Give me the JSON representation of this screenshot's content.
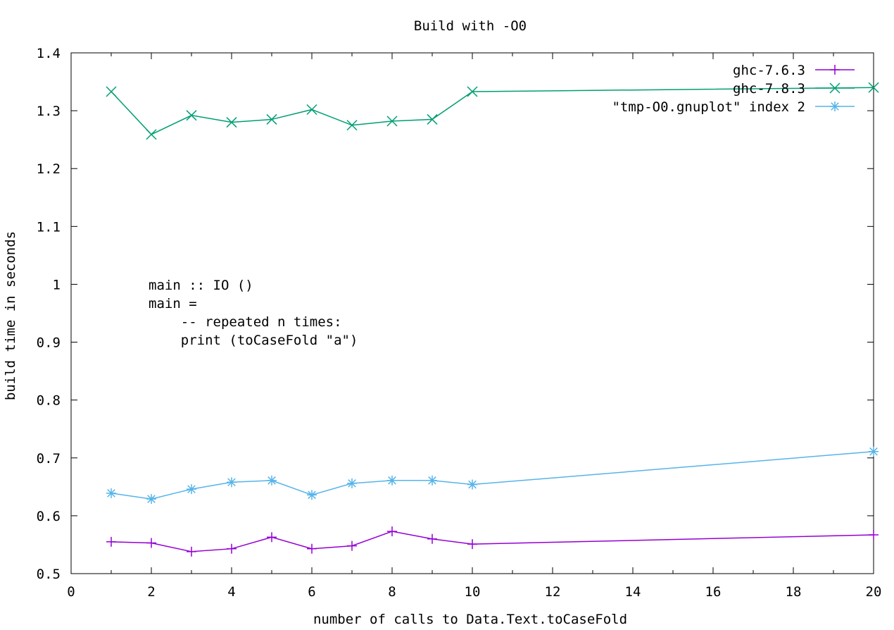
{
  "chart_data": {
    "type": "line",
    "title": "Build with -O0",
    "xlabel": "number of calls to Data.Text.toCaseFold",
    "ylabel": "build time in seconds",
    "xlim": [
      0,
      20
    ],
    "ylim": [
      0.5,
      1.4
    ],
    "xticks": [
      0,
      2,
      4,
      6,
      8,
      10,
      12,
      14,
      16,
      18,
      20
    ],
    "yticks": [
      0.5,
      0.6,
      0.7,
      0.8,
      0.9,
      1.0,
      1.1,
      1.2,
      1.3,
      1.4
    ],
    "xtick_labels": [
      "0",
      "2",
      "4",
      "6",
      "8",
      "10",
      "12",
      "14",
      "16",
      "18",
      "20"
    ],
    "ytick_labels": [
      "0.5",
      "0.6",
      "0.7",
      "0.8",
      "0.9",
      "1",
      "1.1",
      "1.2",
      "1.3",
      "1.4"
    ],
    "grid": false,
    "legend_position": "top-right",
    "annotation": [
      "main :: IO ()",
      "main =",
      "    -- repeated n times:",
      "    print (toCaseFold \"a\")"
    ],
    "series": [
      {
        "name": "ghc-7.6.3",
        "color": "#9400d3",
        "marker": "plus",
        "x": [
          1,
          2,
          3,
          4,
          5,
          6,
          7,
          8,
          9,
          10,
          20
        ],
        "y": [
          0.555,
          0.553,
          0.538,
          0.543,
          0.563,
          0.543,
          0.548,
          0.573,
          0.56,
          0.551,
          0.567
        ]
      },
      {
        "name": "ghc-7.8.3",
        "color": "#009e73",
        "marker": "x",
        "x": [
          1,
          2,
          3,
          4,
          5,
          6,
          7,
          8,
          9,
          10,
          20
        ],
        "y": [
          1.333,
          1.259,
          1.292,
          1.28,
          1.285,
          1.302,
          1.275,
          1.282,
          1.285,
          1.333,
          1.34
        ]
      },
      {
        "name": "\"tmp-O0.gnuplot\" index 2",
        "color": "#56b4e9",
        "marker": "star",
        "x": [
          1,
          2,
          3,
          4,
          5,
          6,
          7,
          8,
          9,
          10,
          20
        ],
        "y": [
          0.639,
          0.629,
          0.646,
          0.658,
          0.661,
          0.636,
          0.656,
          0.661,
          0.661,
          0.654,
          0.711
        ]
      }
    ]
  }
}
